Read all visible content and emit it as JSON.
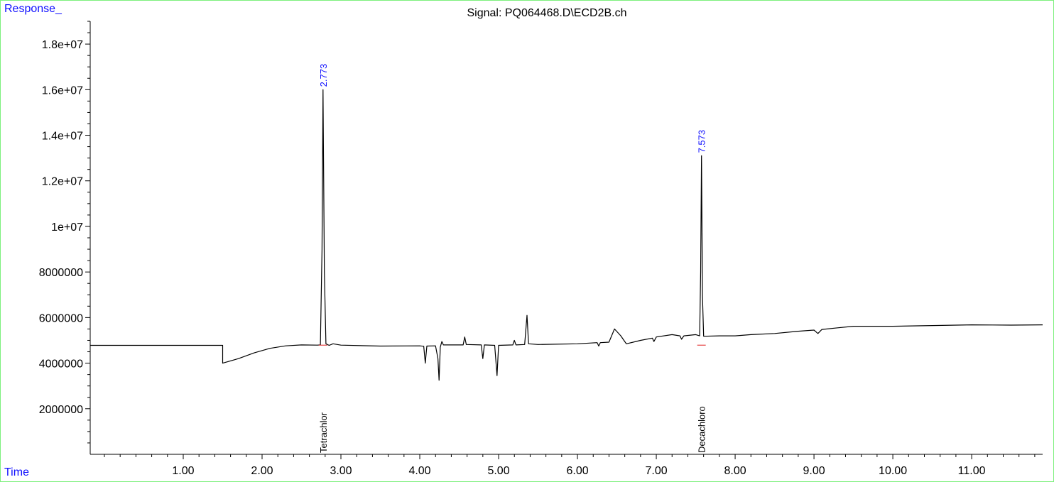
{
  "chart_data": {
    "type": "line",
    "title": "Signal: PQ064468.D\\ECD2B.ch",
    "ylabel": "Response_",
    "xlabel": "Time",
    "xlim": [
      -0.18,
      11.9
    ],
    "ylim": [
      0,
      19000000
    ],
    "x_ticks": [
      {
        "value": 1,
        "label": "1.00"
      },
      {
        "value": 2,
        "label": "2.00"
      },
      {
        "value": 3,
        "label": "3.00"
      },
      {
        "value": 4,
        "label": "4.00"
      },
      {
        "value": 5,
        "label": "5.00"
      },
      {
        "value": 6,
        "label": "6.00"
      },
      {
        "value": 7,
        "label": "7.00"
      },
      {
        "value": 8,
        "label": "8.00"
      },
      {
        "value": 9,
        "label": "9.00"
      },
      {
        "value": 10,
        "label": "10.00"
      },
      {
        "value": 11,
        "label": "11.00"
      }
    ],
    "y_ticks": [
      {
        "value": 2000000,
        "label": "2000000"
      },
      {
        "value": 4000000,
        "label": "4000000"
      },
      {
        "value": 6000000,
        "label": "6000000"
      },
      {
        "value": 8000000,
        "label": "8000000"
      },
      {
        "value": 10000000,
        "label": "1e+07"
      },
      {
        "value": 12000000,
        "label": "1.2e+07"
      },
      {
        "value": 14000000,
        "label": "1.4e+07"
      },
      {
        "value": 16000000,
        "label": "1.6e+07"
      },
      {
        "value": 18000000,
        "label": "1.8e+07"
      }
    ],
    "series": [
      {
        "color": "#000000",
        "points": [
          [
            -0.18,
            4780000
          ],
          [
            1.5,
            4780000
          ],
          [
            1.5,
            4000000
          ],
          [
            1.7,
            4200000
          ],
          [
            1.9,
            4450000
          ],
          [
            2.1,
            4650000
          ],
          [
            2.3,
            4760000
          ],
          [
            2.5,
            4800000
          ],
          [
            2.7,
            4790000
          ],
          [
            2.74,
            4800000
          ],
          [
            2.76,
            9000000
          ],
          [
            2.773,
            16000000
          ],
          [
            2.79,
            8000000
          ],
          [
            2.81,
            4850000
          ],
          [
            2.85,
            4780000
          ],
          [
            2.9,
            4850000
          ],
          [
            3.0,
            4790000
          ],
          [
            3.5,
            4750000
          ],
          [
            4.0,
            4760000
          ],
          [
            4.05,
            4740000
          ],
          [
            4.07,
            4000000
          ],
          [
            4.09,
            4750000
          ],
          [
            4.2,
            4760000
          ],
          [
            4.23,
            4200000
          ],
          [
            4.245,
            3250000
          ],
          [
            4.26,
            4700000
          ],
          [
            4.28,
            4950000
          ],
          [
            4.3,
            4800000
          ],
          [
            4.55,
            4800000
          ],
          [
            4.57,
            5150000
          ],
          [
            4.59,
            4820000
          ],
          [
            4.78,
            4800000
          ],
          [
            4.8,
            4200000
          ],
          [
            4.82,
            4800000
          ],
          [
            4.95,
            4780000
          ],
          [
            4.98,
            3450000
          ],
          [
            5.0,
            4780000
          ],
          [
            5.18,
            4800000
          ],
          [
            5.2,
            5000000
          ],
          [
            5.22,
            4800000
          ],
          [
            5.33,
            4820000
          ],
          [
            5.36,
            6100000
          ],
          [
            5.38,
            4850000
          ],
          [
            5.5,
            4820000
          ],
          [
            6.0,
            4850000
          ],
          [
            6.25,
            4900000
          ],
          [
            6.27,
            4750000
          ],
          [
            6.29,
            4900000
          ],
          [
            6.4,
            4920000
          ],
          [
            6.47,
            5500000
          ],
          [
            6.55,
            5200000
          ],
          [
            6.6,
            4950000
          ],
          [
            6.62,
            4850000
          ],
          [
            6.8,
            5000000
          ],
          [
            6.95,
            5100000
          ],
          [
            6.97,
            4950000
          ],
          [
            7.0,
            5150000
          ],
          [
            7.2,
            5250000
          ],
          [
            7.3,
            5200000
          ],
          [
            7.32,
            5050000
          ],
          [
            7.35,
            5200000
          ],
          [
            7.5,
            5250000
          ],
          [
            7.55,
            5200000
          ],
          [
            7.563,
            8000000
          ],
          [
            7.573,
            13100000
          ],
          [
            7.585,
            7000000
          ],
          [
            7.6,
            5180000
          ],
          [
            7.8,
            5200000
          ],
          [
            8.0,
            5200000
          ],
          [
            8.2,
            5250000
          ],
          [
            8.5,
            5300000
          ],
          [
            8.8,
            5400000
          ],
          [
            9.0,
            5450000
          ],
          [
            9.05,
            5300000
          ],
          [
            9.1,
            5480000
          ],
          [
            9.3,
            5550000
          ],
          [
            9.5,
            5620000
          ],
          [
            10.0,
            5620000
          ],
          [
            10.5,
            5650000
          ],
          [
            11.0,
            5680000
          ],
          [
            11.5,
            5670000
          ],
          [
            11.9,
            5680000
          ]
        ]
      }
    ],
    "peaks": [
      {
        "rt": 2.773,
        "height": 16000000,
        "label": "2.773",
        "compound": "Tetrachlor"
      },
      {
        "rt": 7.573,
        "height": 13100000,
        "label": "7.573",
        "compound": "Decachloro"
      }
    ]
  }
}
